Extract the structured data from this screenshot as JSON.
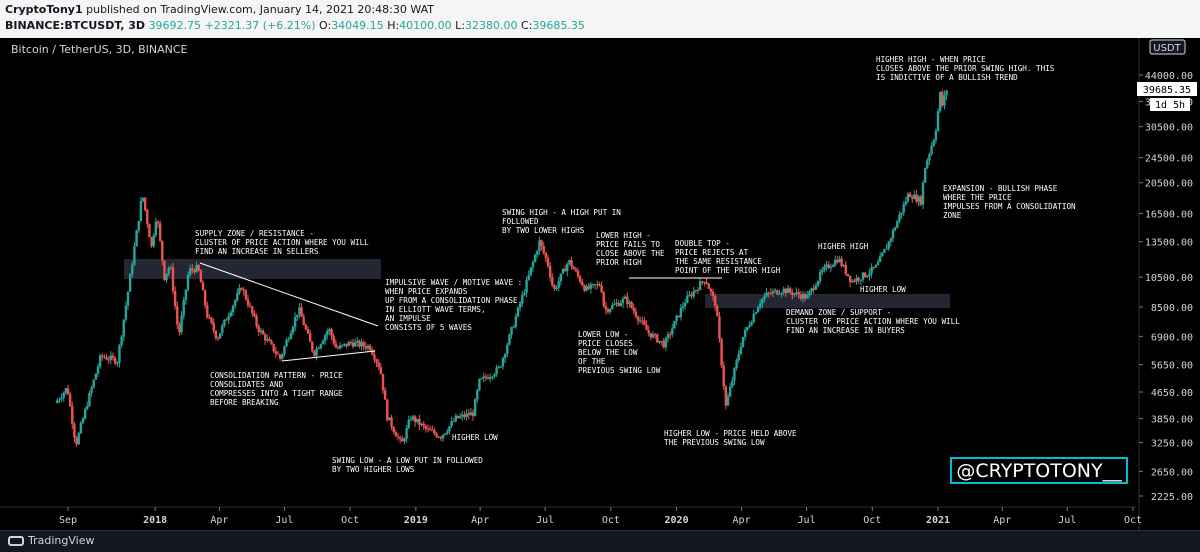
{
  "header": {
    "publisher": "CryptoTony1",
    "published_text": "published on TradingView.com, January 14, 2021 20:48:30 WAT",
    "symbol": "BINANCE:BTCUSDT, 3D",
    "last": "39692.75",
    "change": "+2321.37 (+6.21%)",
    "o_label": "O:",
    "o_value": "34049.15",
    "h_label": "H:",
    "h_value": "40100.00",
    "l_label": "L:",
    "l_value": "32380.00",
    "c_label": "C:",
    "c_value": "39685.35"
  },
  "chart_title": "Bitcoin / TetherUS, 3D, BINANCE",
  "currency_button": "USDT",
  "price_tag": "39685.35",
  "countdown_tag": "1d 5h",
  "watermark": "@CRYPTOTONY__",
  "footer_logo": "TradingView",
  "colors": {
    "up": "#26a69a",
    "down": "#ef5350",
    "accent": "#00bcd4"
  },
  "chart_data": {
    "type": "candlestick",
    "title": "Bitcoin / TetherUS, 3D, BINANCE",
    "y_scale": "log",
    "ylim": [
      2225,
      52000
    ],
    "y_ticks": [
      2225.0,
      2650.0,
      3250.0,
      3850.0,
      4650.0,
      5650.0,
      6900.0,
      8500.0,
      10500.0,
      13500.0,
      16500.0,
      20500.0,
      24500.0,
      30500.0,
      36500.0,
      44000.0
    ],
    "x_ticks": [
      "Sep",
      "2018",
      "Apr",
      "Jul",
      "Oct",
      "2019",
      "Apr",
      "Jul",
      "Oct",
      "2020",
      "Apr",
      "Jul",
      "Oct",
      "2021",
      "Apr",
      "Jul",
      "Oct"
    ],
    "x_tick_dates": [
      "2017-09-01",
      "2018-01-01",
      "2018-04-01",
      "2018-07-01",
      "2018-10-01",
      "2019-01-01",
      "2019-04-01",
      "2019-07-01",
      "2019-10-01",
      "2020-01-01",
      "2020-04-01",
      "2020-07-01",
      "2020-10-01",
      "2021-01-01",
      "2021-04-01",
      "2021-07-01",
      "2021-10-01"
    ],
    "x_range": [
      "2017-08-01",
      "2021-10-25"
    ],
    "price_path": [
      [
        "2017-08-17",
        4300
      ],
      [
        "2017-09-03",
        4800
      ],
      [
        "2017-09-15",
        3200
      ],
      [
        "2017-10-01",
        4300
      ],
      [
        "2017-10-20",
        6000
      ],
      [
        "2017-11-12",
        5800
      ],
      [
        "2017-11-28",
        9800
      ],
      [
        "2017-12-17",
        19000
      ],
      [
        "2017-12-30",
        13000
      ],
      [
        "2018-01-06",
        16500
      ],
      [
        "2018-01-17",
        10500
      ],
      [
        "2018-01-25",
        11500
      ],
      [
        "2018-02-06",
        6900
      ],
      [
        "2018-02-20",
        11000
      ],
      [
        "2018-03-05",
        11200
      ],
      [
        "2018-03-18",
        8000
      ],
      [
        "2018-04-01",
        6800
      ],
      [
        "2018-04-12",
        7700
      ],
      [
        "2018-05-05",
        9800
      ],
      [
        "2018-05-28",
        7300
      ],
      [
        "2018-06-12",
        6600
      ],
      [
        "2018-06-28",
        5900
      ],
      [
        "2018-07-24",
        8400
      ],
      [
        "2018-08-14",
        6100
      ],
      [
        "2018-09-04",
        7300
      ],
      [
        "2018-09-15",
        6300
      ],
      [
        "2018-10-05",
        6600
      ],
      [
        "2018-11-01",
        6400
      ],
      [
        "2018-11-15",
        5500
      ],
      [
        "2018-11-25",
        3900
      ],
      [
        "2018-12-15",
        3200
      ],
      [
        "2018-12-28",
        3900
      ],
      [
        "2019-01-20",
        3550
      ],
      [
        "2019-02-08",
        3400
      ],
      [
        "2019-03-01",
        3850
      ],
      [
        "2019-03-25",
        4000
      ],
      [
        "2019-04-03",
        5000
      ],
      [
        "2019-05-01",
        5500
      ],
      [
        "2019-05-30",
        8700
      ],
      [
        "2019-06-26",
        13500
      ],
      [
        "2019-07-08",
        11500
      ],
      [
        "2019-07-16",
        9500
      ],
      [
        "2019-08-06",
        11800
      ],
      [
        "2019-08-30",
        9600
      ],
      [
        "2019-09-20",
        10000
      ],
      [
        "2019-09-25",
        8300
      ],
      [
        "2019-10-25",
        9000
      ],
      [
        "2019-11-25",
        7100
      ],
      [
        "2019-12-18",
        6500
      ],
      [
        "2020-01-15",
        8800
      ],
      [
        "2020-02-13",
        10400
      ],
      [
        "2020-02-28",
        8600
      ],
      [
        "2020-03-13",
        4200
      ],
      [
        "2020-04-05",
        6800
      ],
      [
        "2020-04-29",
        8800
      ],
      [
        "2020-05-10",
        9300
      ],
      [
        "2020-06-01",
        9600
      ],
      [
        "2020-07-05",
        9100
      ],
      [
        "2020-07-27",
        11000
      ],
      [
        "2020-08-17",
        12000
      ],
      [
        "2020-09-05",
        10200
      ],
      [
        "2020-09-25",
        10700
      ],
      [
        "2020-10-10",
        11300
      ],
      [
        "2020-10-26",
        13300
      ],
      [
        "2020-11-24",
        19000
      ],
      [
        "2020-12-11",
        18000
      ],
      [
        "2020-12-17",
        23000
      ],
      [
        "2020-12-31",
        29000
      ],
      [
        "2021-01-08",
        40000
      ],
      [
        "2021-01-11",
        33500
      ],
      [
        "2021-01-14",
        39685
      ]
    ],
    "y_range_bounds": {
      "low": 3156.26,
      "high": 41950.0
    }
  },
  "annotations": [
    {
      "id": "supply",
      "lines": [
        "SUPPLY ZONE / RESISTANCE -",
        "CLUSTER OF PRICE ACTION WHERE YOU WILL",
        "FIND AN INCREASE IN SELLERS"
      ]
    },
    {
      "id": "consolidation",
      "lines": [
        "CONSOLIDATION PATTERN - PRICE",
        "CONSOLIDATES AND",
        "COMPRESSES INTO A TIGHT RANGE",
        "BEFORE BREAKING"
      ]
    },
    {
      "id": "impulsive",
      "lines": [
        "IMPULSIVE WAVE / MOTIVE WAVE :",
        "WHEN PRICE EXPANDS",
        "UP FROM A CONSOLIDATION PHASE.",
        "IN ELLIOTT WAVE TERMS,",
        "AN IMPULSE",
        "CONSISTS OF 5 WAVES"
      ]
    },
    {
      "id": "higherlow1",
      "lines": [
        "HIGHER LOW"
      ]
    },
    {
      "id": "swinglow",
      "lines": [
        "SWING LOW - A LOW PUT IN FOLLOWED",
        "BY TWO HIGHER LOWS"
      ]
    },
    {
      "id": "swinghigh",
      "lines": [
        "SWING HIGH - A HIGH PUT IN",
        "FOLLOWED",
        "BY TWO LOWER HIGHS"
      ]
    },
    {
      "id": "lowerhigh",
      "lines": [
        "LOWER HIGH -",
        "PRICE FAILS TO",
        "CLOSE ABOVE THE",
        "PRIOR HIGH"
      ]
    },
    {
      "id": "doubletop",
      "lines": [
        "DOUBLE TOP -",
        "PRICE REJECTS AT",
        "THE SAME RESISTANCE",
        "POINT OF THE  PRIOR HIGH"
      ]
    },
    {
      "id": "lowerlow",
      "lines": [
        "LOWER LOW -",
        "PRICE CLOSES",
        "BELOW THE LOW",
        "OF THE",
        "PREVIOUS SWING LOW"
      ]
    },
    {
      "id": "higherlow2",
      "lines": [
        "HIGHER LOW - PRICE HELD ABOVE",
        "THE PREVIOUS SWING LOW"
      ]
    },
    {
      "id": "higherhigh1",
      "lines": [
        "HIGHER HIGH"
      ]
    },
    {
      "id": "higherlow3",
      "lines": [
        "HIGHER LOW"
      ]
    },
    {
      "id": "demand",
      "lines": [
        "DEMAND ZONE / SUPPORT -",
        "CLUSTER OF PRICE ACTION WHERE YOU WILL",
        "FIND AN INCREASE IN BUYERS"
      ]
    },
    {
      "id": "expansion",
      "lines": [
        "EXPANSION - BULLISH PHASE",
        "WHERE THE PRICE",
        "IMPULSES FROM A CONSOLIDATION",
        "ZONE"
      ]
    },
    {
      "id": "higherhigh2",
      "lines": [
        "HIGHER HIGH - WHEN PRICE",
        "CLOSES ABOVE THE PRIOR SWING HIGH. THIS",
        "IS INDICTIVE OF A BULLISH TREND"
      ]
    }
  ]
}
